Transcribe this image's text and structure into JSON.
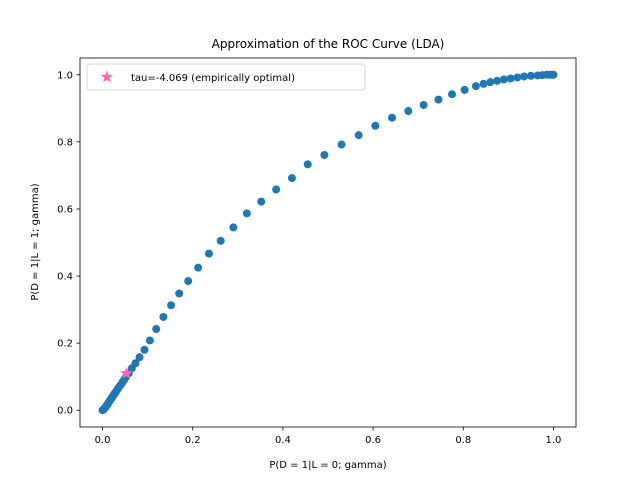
{
  "chart_data": {
    "type": "scatter",
    "title": "Approximation of the ROC Curve (LDA)",
    "xlabel": "P(D = 1|L = 0; gamma)",
    "ylabel": "P(D = 1|L = 1; gamma)",
    "xlim": [
      -0.05,
      1.05
    ],
    "ylim": [
      -0.05,
      1.05
    ],
    "xticks": [
      0.0,
      0.2,
      0.4,
      0.6,
      0.8,
      1.0
    ],
    "yticks": [
      0.0,
      0.2,
      0.4,
      0.6,
      0.8,
      1.0
    ],
    "xtick_labels": [
      "0.0",
      "0.2",
      "0.4",
      "0.6",
      "0.8",
      "1.0"
    ],
    "ytick_labels": [
      "0.0",
      "0.2",
      "0.4",
      "0.6",
      "0.8",
      "1.0"
    ],
    "grid": false,
    "legend_position": "top-left",
    "series": [
      {
        "color": "#1f77b4",
        "marker": "circle",
        "points": [
          [
            0.0,
            0.0
          ],
          [
            0.002,
            0.002
          ],
          [
            0.004,
            0.005
          ],
          [
            0.006,
            0.008
          ],
          [
            0.008,
            0.012
          ],
          [
            0.01,
            0.016
          ],
          [
            0.012,
            0.02
          ],
          [
            0.014,
            0.024
          ],
          [
            0.016,
            0.028
          ],
          [
            0.018,
            0.032
          ],
          [
            0.02,
            0.036
          ],
          [
            0.022,
            0.04
          ],
          [
            0.024,
            0.044
          ],
          [
            0.026,
            0.048
          ],
          [
            0.028,
            0.052
          ],
          [
            0.03,
            0.056
          ],
          [
            0.033,
            0.062
          ],
          [
            0.036,
            0.068
          ],
          [
            0.04,
            0.075
          ],
          [
            0.044,
            0.083
          ],
          [
            0.048,
            0.091
          ],
          [
            0.052,
            0.099
          ],
          [
            0.058,
            0.11
          ],
          [
            0.065,
            0.125
          ],
          [
            0.073,
            0.14
          ],
          [
            0.082,
            0.158
          ],
          [
            0.093,
            0.18
          ],
          [
            0.105,
            0.208
          ],
          [
            0.119,
            0.242
          ],
          [
            0.135,
            0.278
          ],
          [
            0.152,
            0.313
          ],
          [
            0.17,
            0.348
          ],
          [
            0.19,
            0.385
          ],
          [
            0.212,
            0.425
          ],
          [
            0.236,
            0.467
          ],
          [
            0.262,
            0.505
          ],
          [
            0.29,
            0.545
          ],
          [
            0.32,
            0.587
          ],
          [
            0.352,
            0.622
          ],
          [
            0.385,
            0.658
          ],
          [
            0.42,
            0.692
          ],
          [
            0.455,
            0.733
          ],
          [
            0.492,
            0.761
          ],
          [
            0.53,
            0.792
          ],
          [
            0.568,
            0.82
          ],
          [
            0.605,
            0.848
          ],
          [
            0.642,
            0.872
          ],
          [
            0.678,
            0.892
          ],
          [
            0.712,
            0.91
          ],
          [
            0.745,
            0.926
          ],
          [
            0.775,
            0.942
          ],
          [
            0.803,
            0.955
          ],
          [
            0.828,
            0.966
          ],
          [
            0.845,
            0.973
          ],
          [
            0.86,
            0.978
          ],
          [
            0.875,
            0.982
          ],
          [
            0.89,
            0.986
          ],
          [
            0.905,
            0.989
          ],
          [
            0.92,
            0.992
          ],
          [
            0.935,
            0.995
          ],
          [
            0.95,
            0.997
          ],
          [
            0.965,
            0.998
          ],
          [
            0.975,
            0.999
          ],
          [
            0.985,
            1.0
          ],
          [
            0.992,
            1.0
          ],
          [
            0.997,
            1.0
          ],
          [
            1.0,
            1.0
          ]
        ]
      },
      {
        "name": "tau=-4.069 (empirically optimal)",
        "color": "#ff69b4",
        "marker": "star",
        "points": [
          [
            0.053,
            0.11
          ]
        ]
      }
    ]
  }
}
